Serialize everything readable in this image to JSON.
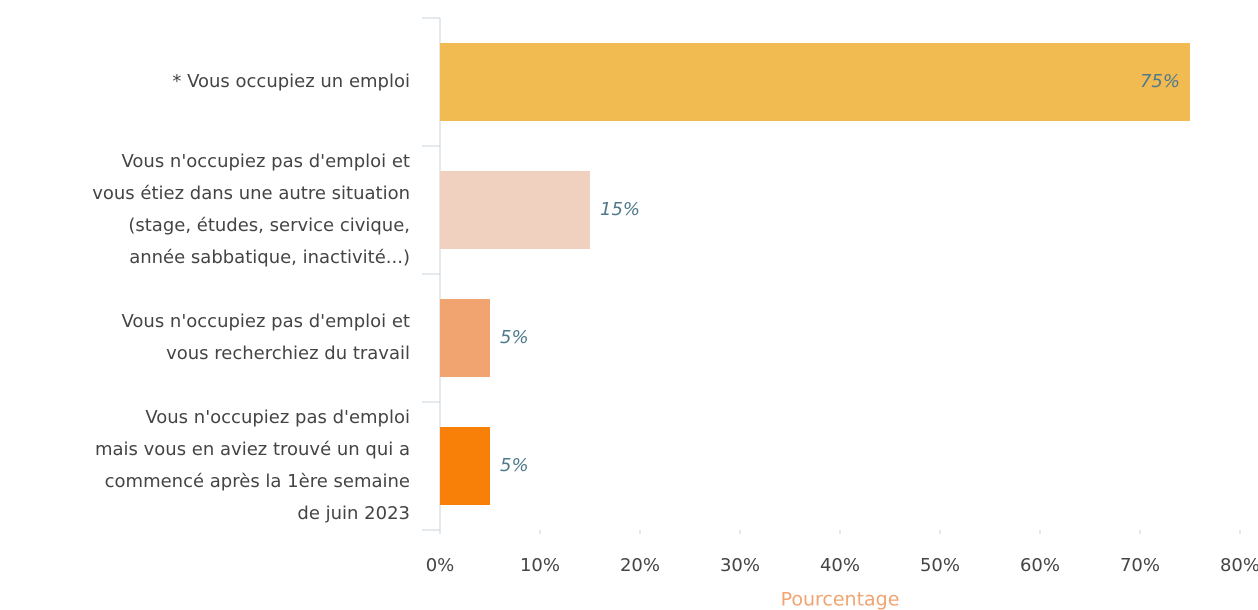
{
  "chart_data": {
    "type": "hbar",
    "categories": [
      [
        "* Vous occupiez un emploi"
      ],
      [
        "Vous n'occupiez pas d'emploi et",
        "vous étiez dans une autre situation",
        "(stage, études, service civique,",
        "année sabbatique, inactivité...)"
      ],
      [
        "Vous n'occupiez pas d'emploi et",
        "vous recherchiez du travail"
      ],
      [
        "Vous n'occupiez pas d'emploi",
        "mais vous en aviez trouvé un qui a",
        "commencé après la 1ère semaine",
        "de juin 2023"
      ]
    ],
    "values": [
      75,
      15,
      5,
      5
    ],
    "value_labels": [
      "75%",
      "15%",
      "5%",
      "5%"
    ],
    "colors": [
      "#f2bb52",
      "#f0d0bf",
      "#f2a470",
      "#f88008"
    ],
    "xlim": [
      0,
      80
    ],
    "xticks": [
      {
        "value": 0,
        "label": "0%"
      },
      {
        "value": 10,
        "label": "10%"
      },
      {
        "value": 20,
        "label": "20%"
      },
      {
        "value": 30,
        "label": "30%"
      },
      {
        "value": 40,
        "label": "40%"
      },
      {
        "value": 50,
        "label": "50%"
      },
      {
        "value": 60,
        "label": "60%"
      },
      {
        "value": 70,
        "label": "70%"
      },
      {
        "value": 80,
        "label": "80%"
      }
    ],
    "xlabel": "Pourcentage"
  }
}
